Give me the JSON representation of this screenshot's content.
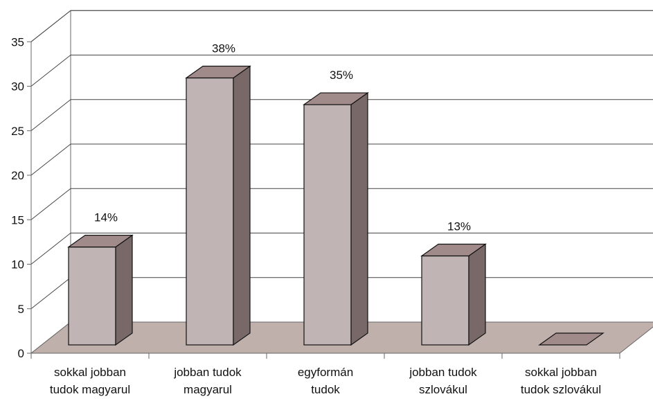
{
  "chart_data": {
    "type": "bar",
    "title": "",
    "xlabel": "",
    "ylabel": "",
    "ylim": [
      0,
      35
    ],
    "yticks": [
      0,
      5,
      10,
      15,
      20,
      25,
      30,
      35
    ],
    "grid": true,
    "three_d": true,
    "categories": [
      [
        "sokkal jobban",
        "tudok magyarul"
      ],
      [
        "jobban tudok",
        "magyarul"
      ],
      [
        "egyformán",
        "tudok"
      ],
      [
        "jobban tudok",
        "szlovákul"
      ],
      [
        "sokkal jobban",
        "tudok szlovákul"
      ]
    ],
    "values": [
      11,
      30,
      27,
      10,
      0
    ],
    "data_labels": [
      "14%",
      "38%",
      "35%",
      "13%",
      ""
    ],
    "colors": {
      "bar_front": "#c0b4b4",
      "bar_side": "#786868",
      "bar_top": "#a08a8a",
      "floor": "#c0b0ac",
      "wall": "#ffffff",
      "axis": "#666666",
      "grid": "#444444"
    }
  }
}
